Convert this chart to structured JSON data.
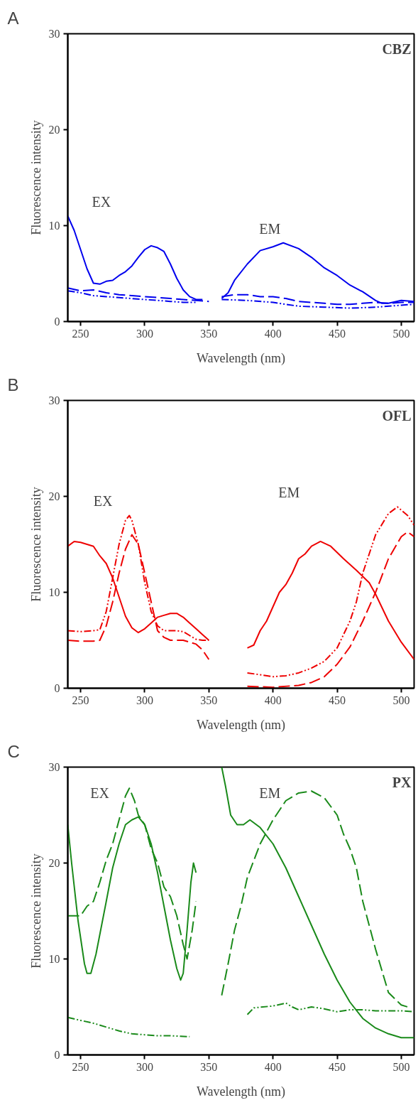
{
  "chart_data": [
    {
      "type": "line",
      "title": "A",
      "xlabel": "Wavelength (nm)",
      "ylabel": "Fluorescence intensity",
      "xlim": [
        240,
        510
      ],
      "xticks": [
        250,
        300,
        350,
        400,
        450,
        500
      ],
      "ylim": [
        0,
        30
      ],
      "yticks": [
        0,
        10,
        20,
        30
      ],
      "grid": false,
      "marker": "none",
      "annotations": [
        "CBZ",
        "EX",
        "EM"
      ],
      "series": [
        {
          "color": "#0000ee",
          "line_style": "solid",
          "x": [
            240,
            245,
            250,
            255,
            260,
            265,
            270,
            275,
            280,
            285,
            290,
            295,
            300,
            305,
            310,
            315,
            320,
            325,
            330,
            335,
            340,
            345,
            350,
            360,
            365,
            370,
            380,
            390,
            400,
            408,
            420,
            430,
            440,
            450,
            460,
            470,
            480,
            485,
            490,
            500,
            510
          ],
          "values": [
            11,
            9.5,
            7.5,
            5.5,
            4,
            3.9,
            4.2,
            4.3,
            4.8,
            5.2,
            5.8,
            6.7,
            7.5,
            7.9,
            7.7,
            7.3,
            6,
            4.5,
            3.3,
            2.6,
            2.3,
            2.3,
            null,
            2.4,
            3,
            4.3,
            6,
            7.4,
            7.8,
            8.2,
            7.6,
            6.7,
            5.6,
            4.8,
            3.8,
            3.1,
            2.2,
            1.9,
            1.9,
            2.2,
            2.1
          ]
        },
        {
          "color": "#0000ee",
          "line_style": "dashed",
          "x": [
            240,
            250,
            260,
            270,
            280,
            290,
            300,
            310,
            320,
            330,
            340,
            350,
            355,
            360,
            370,
            380,
            390,
            400,
            410,
            420,
            430,
            440,
            450,
            460,
            470,
            480,
            490,
            500,
            510
          ],
          "values": [
            3.5,
            3.2,
            3.3,
            3.0,
            2.8,
            2.7,
            2.6,
            2.5,
            2.4,
            2.3,
            2.2,
            2.1,
            null,
            2.6,
            2.8,
            2.8,
            2.6,
            2.6,
            2.4,
            2.1,
            2.0,
            1.9,
            1.8,
            1.8,
            1.9,
            2.0,
            1.9,
            2.0,
            2.0
          ]
        },
        {
          "color": "#0000ee",
          "line_style": "dotted",
          "x": [
            240,
            250,
            260,
            270,
            280,
            290,
            300,
            310,
            320,
            330,
            340,
            350,
            360,
            380,
            400,
            420,
            440,
            460,
            480,
            500,
            510
          ],
          "values": [
            3.2,
            3.0,
            2.7,
            2.6,
            2.5,
            2.4,
            2.3,
            2.2,
            2.1,
            2.0,
            2.0,
            null,
            2.3,
            2.2,
            2.0,
            1.6,
            1.5,
            1.4,
            1.5,
            1.7,
            1.8
          ]
        }
      ]
    },
    {
      "type": "line",
      "title": "B",
      "xlabel": "Wavelength (nm)",
      "ylabel": "Fluorescence intensity",
      "xlim": [
        240,
        510
      ],
      "xticks": [
        250,
        300,
        350,
        400,
        450,
        500
      ],
      "ylim": [
        0,
        30
      ],
      "yticks": [
        0,
        10,
        20,
        30
      ],
      "grid": false,
      "marker": "none",
      "annotations": [
        "OFL",
        "EX",
        "EM"
      ],
      "series": [
        {
          "color": "#ee0000",
          "line_style": "solid",
          "x": [
            240,
            245,
            250,
            255,
            260,
            265,
            270,
            275,
            280,
            285,
            290,
            295,
            300,
            305,
            310,
            315,
            320,
            325,
            330,
            335,
            340,
            345,
            350,
            365,
            380,
            385,
            390,
            395,
            400,
            405,
            410,
            415,
            420,
            425,
            430,
            437,
            445,
            455,
            465,
            475,
            480,
            490,
            500,
            510
          ],
          "values": [
            14.8,
            15.3,
            15.2,
            15.0,
            14.8,
            13.8,
            13,
            11.5,
            9.5,
            7.5,
            6.3,
            5.8,
            6.2,
            6.8,
            7.4,
            7.6,
            7.8,
            7.8,
            7.4,
            6.8,
            6.2,
            5.6,
            5,
            null,
            4.2,
            4.5,
            6,
            7,
            8.5,
            10,
            10.8,
            12,
            13.5,
            14,
            14.8,
            15.3,
            14.8,
            13.5,
            12.3,
            11,
            9.8,
            7,
            4.8,
            3
          ]
        },
        {
          "color": "#ee0000",
          "line_style": "dotted",
          "x": [
            240,
            250,
            260,
            265,
            270,
            275,
            280,
            285,
            288,
            290,
            295,
            300,
            305,
            310,
            315,
            320,
            325,
            330,
            335,
            340,
            345,
            350,
            365,
            380,
            390,
            400,
            410,
            420,
            430,
            440,
            450,
            460,
            465,
            470,
            480,
            490,
            497,
            505,
            510
          ],
          "values": [
            6,
            5.9,
            6,
            6.1,
            8,
            11.5,
            15,
            17.5,
            18,
            17.5,
            15,
            11,
            8,
            6.5,
            6,
            6,
            6,
            5.9,
            5.5,
            5.1,
            5,
            5,
            null,
            1.6,
            1.4,
            1.2,
            1.3,
            1.6,
            2.1,
            2.8,
            4.2,
            7,
            9,
            12,
            16,
            18.2,
            18.9,
            18,
            17
          ]
        },
        {
          "color": "#ee0000",
          "line_style": "dashed",
          "x": [
            240,
            250,
            260,
            265,
            270,
            275,
            280,
            285,
            290,
            295,
            300,
            305,
            310,
            315,
            320,
            330,
            340,
            345,
            350,
            365,
            380,
            400,
            420,
            430,
            440,
            450,
            460,
            470,
            480,
            490,
            500,
            505,
            510
          ],
          "values": [
            5,
            4.9,
            4.9,
            5,
            6.5,
            9,
            12,
            14.5,
            16,
            15,
            12,
            9,
            6,
            5.3,
            5,
            5,
            4.6,
            4,
            3,
            null,
            0.2,
            0.1,
            0.3,
            0.6,
            1.2,
            2.5,
            4.3,
            7,
            10,
            13.5,
            15.8,
            16.3,
            15.8
          ]
        }
      ]
    },
    {
      "type": "line",
      "title": "C",
      "xlabel": "Wavelength (nm)",
      "ylabel": "Fluorescence intensity",
      "xlim": [
        240,
        510
      ],
      "xticks": [
        250,
        300,
        350,
        400,
        450,
        500
      ],
      "ylim": [
        0,
        30
      ],
      "yticks": [
        0,
        10,
        20,
        30
      ],
      "grid": false,
      "marker": "none",
      "annotations": [
        "PX",
        "EX",
        "EM"
      ],
      "series": [
        {
          "color": "#1a8a1a",
          "line_style": "solid",
          "x": [
            240,
            243,
            248,
            253,
            255,
            258,
            262,
            270,
            275,
            280,
            285,
            290,
            295,
            300,
            305,
            310,
            315,
            320,
            325,
            328,
            330,
            333,
            336,
            338,
            340,
            350,
            360,
            363,
            367,
            372,
            377,
            382,
            390,
            400,
            410,
            420,
            430,
            440,
            450,
            460,
            470,
            480,
            490,
            500,
            510
          ],
          "values": [
            24,
            20,
            14,
            9.5,
            8.5,
            8.5,
            10.5,
            16,
            19.5,
            22,
            24,
            24.5,
            24.8,
            24,
            22,
            19,
            15.5,
            12,
            9,
            7.8,
            8.5,
            13,
            18,
            20,
            19,
            null,
            30,
            28,
            25,
            24,
            24,
            24.5,
            23.7,
            22,
            19.5,
            16.5,
            13.5,
            10.5,
            7.8,
            5.5,
            3.8,
            2.8,
            2.2,
            1.8,
            1.8
          ]
        },
        {
          "color": "#1a8a1a",
          "line_style": "dashed",
          "x": [
            240,
            250,
            255,
            260,
            265,
            270,
            275,
            280,
            285,
            288,
            292,
            295,
            300,
            305,
            310,
            315,
            320,
            325,
            330,
            333,
            337,
            340,
            350,
            360,
            365,
            370,
            375,
            380,
            390,
            400,
            410,
            420,
            430,
            440,
            450,
            455,
            460,
            465,
            470,
            480,
            490,
            500,
            505
          ],
          "values": [
            14.5,
            14.5,
            15.5,
            16,
            18,
            20.3,
            22,
            24.5,
            27,
            27.8,
            26.5,
            25,
            24,
            21.5,
            20,
            17.5,
            16.5,
            14.5,
            11.5,
            10,
            13,
            16,
            null,
            6.2,
            9.5,
            13,
            15.5,
            18.5,
            22,
            24.5,
            26.5,
            27.3,
            27.5,
            26.8,
            25,
            23,
            21.5,
            19.5,
            16,
            11,
            6.5,
            5.2,
            5
          ]
        },
        {
          "color": "#1a8a1a",
          "line_style": "dotted",
          "x": [
            240,
            250,
            260,
            270,
            280,
            290,
            300,
            310,
            320,
            335,
            360,
            380,
            385,
            400,
            410,
            415,
            420,
            430,
            440,
            450,
            460,
            470,
            480,
            490,
            500,
            510
          ],
          "values": [
            3.9,
            3.6,
            3.3,
            2.9,
            2.5,
            2.2,
            2.1,
            2.0,
            2.0,
            1.9,
            null,
            4.2,
            4.9,
            5.1,
            5.4,
            5.0,
            4.7,
            5.0,
            4.8,
            4.5,
            4.7,
            4.7,
            4.6,
            4.6,
            4.6,
            4.5
          ]
        }
      ]
    }
  ]
}
